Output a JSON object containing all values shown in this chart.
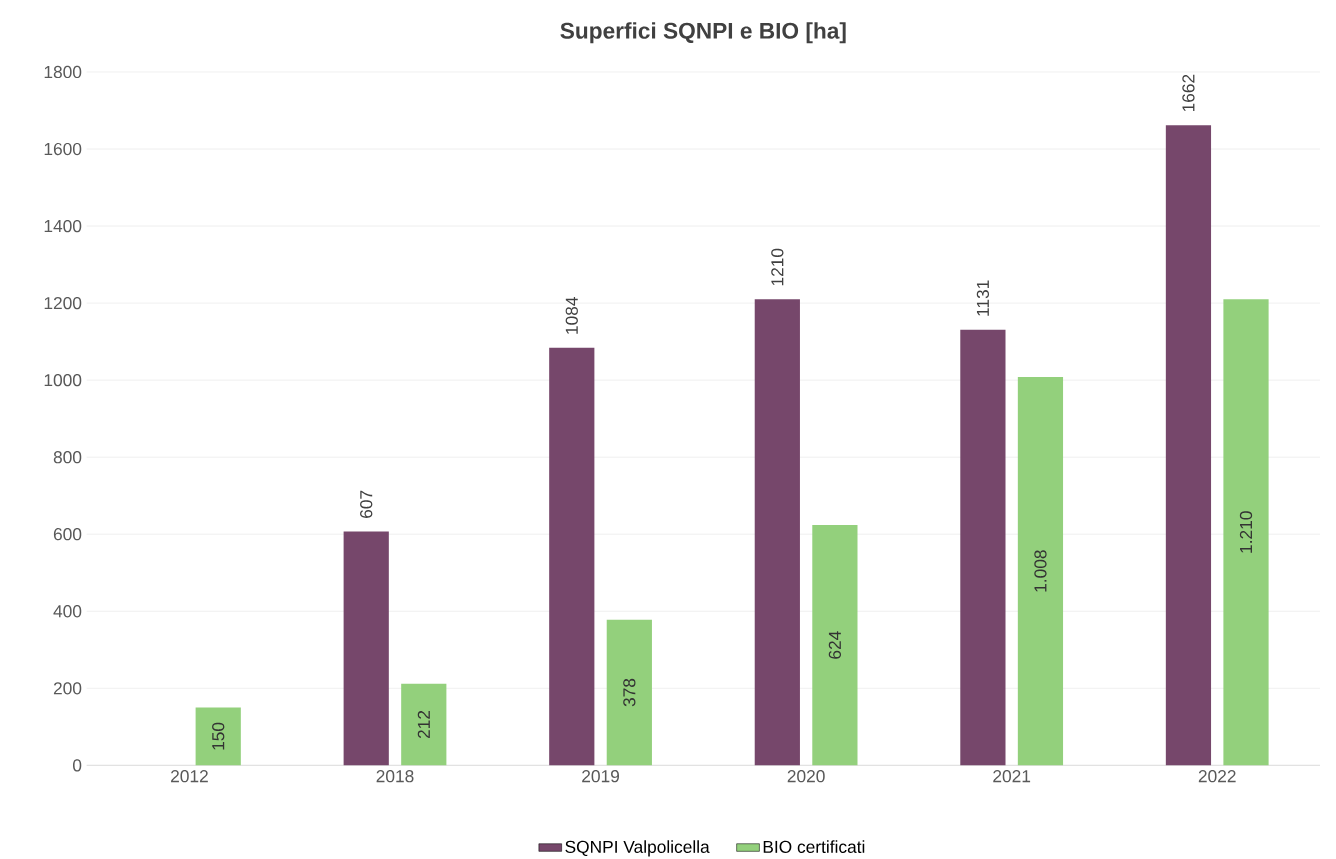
{
  "chart_data": {
    "type": "bar",
    "title": "Superfici SQNPI e BIO [ha]",
    "categories": [
      "2012",
      "2018",
      "2019",
      "2020",
      "2021",
      "2022"
    ],
    "series": [
      {
        "name": "SQNPI Valpolicella",
        "color": "#76476b",
        "values": [
          null,
          607,
          1084,
          1210,
          1131,
          1662
        ],
        "value_labels": [
          null,
          "607",
          "1084",
          "1210",
          "1131",
          "1662"
        ]
      },
      {
        "name": "BIO certificati",
        "color": "#93d07c",
        "values": [
          150,
          212,
          378,
          624,
          1008,
          1210
        ],
        "value_labels": [
          "150",
          "212",
          "378",
          "624",
          "1.008",
          "1.210"
        ]
      }
    ],
    "ylim": [
      0,
      1800
    ],
    "yticks": [
      0,
      200,
      400,
      600,
      800,
      1000,
      1200,
      1400,
      1600,
      1800
    ],
    "grid": "y",
    "legend": "bottom"
  }
}
